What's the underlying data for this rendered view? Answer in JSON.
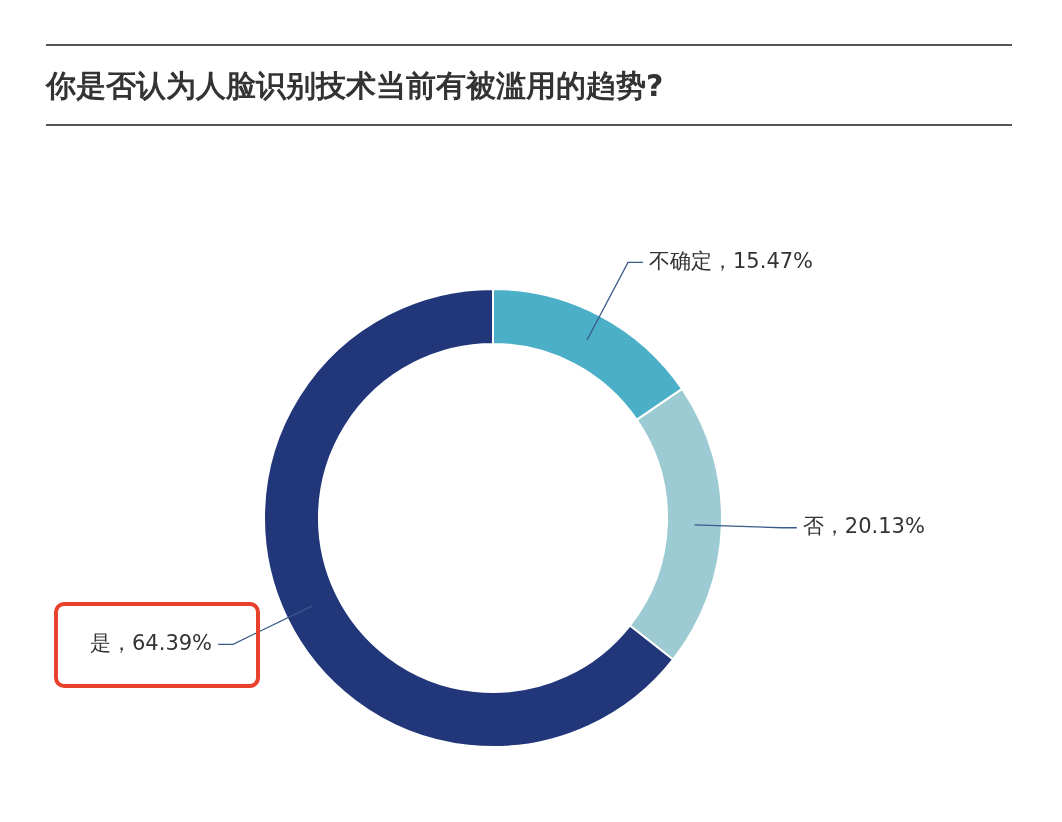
{
  "chart_data": {
    "type": "donut",
    "title": "你是否认为人脸识别技术当前有被滥用的趋势?",
    "categories": [
      "不确定",
      "否",
      "是"
    ],
    "values": [
      15.47,
      20.13,
      64.39
    ],
    "colors": [
      "#4bafc8",
      "#9ccbd3",
      "#22377a"
    ],
    "value_labels": [
      "，15.47%",
      "，20.13%",
      "，64.39%"
    ],
    "legend": false
  }
}
